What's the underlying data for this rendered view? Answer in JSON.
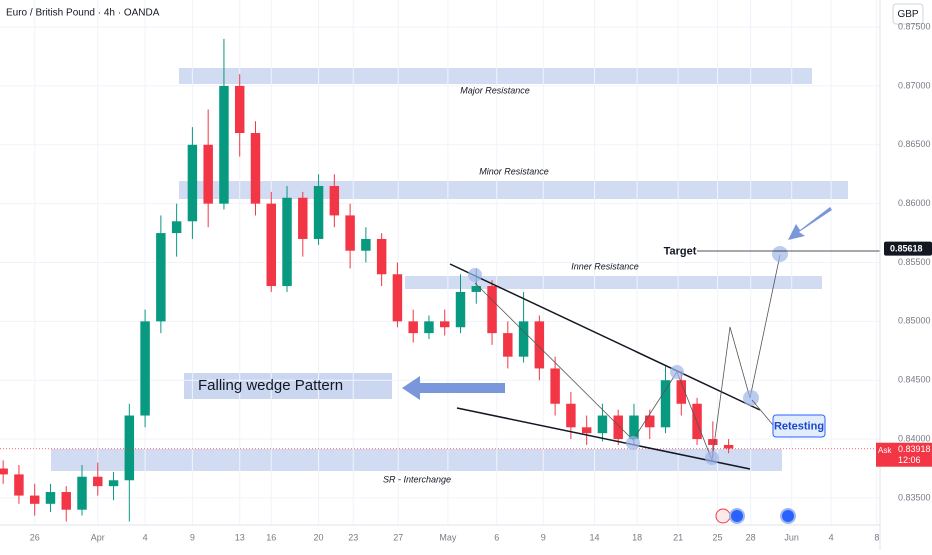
{
  "chart_data": {
    "type": "candlestick",
    "title": "Euro / British Pound · 4h · OANDA",
    "currency": "GBP",
    "up_color": "#089981",
    "down_color": "#f23645",
    "x": [
      -2,
      -1,
      0,
      1,
      2,
      3,
      4,
      5,
      6,
      7,
      8,
      9,
      10,
      11,
      12,
      13,
      14,
      15,
      16,
      17,
      18,
      19,
      20,
      21,
      22,
      23,
      24,
      25,
      26,
      27,
      28,
      29,
      30,
      31,
      32,
      33,
      34,
      35,
      36,
      37,
      38,
      39,
      40,
      41,
      42,
      43,
      44
    ],
    "open": [
      0.8375,
      0.837,
      0.8352,
      0.8345,
      0.8355,
      0.834,
      0.8368,
      0.836,
      0.8365,
      0.842,
      0.85,
      0.8575,
      0.8585,
      0.865,
      0.86,
      0.87,
      0.866,
      0.86,
      0.853,
      0.8605,
      0.857,
      0.8615,
      0.859,
      0.856,
      0.857,
      0.854,
      0.85,
      0.849,
      0.85,
      0.8495,
      0.8525,
      0.853,
      0.849,
      0.847,
      0.85,
      0.846,
      0.843,
      0.841,
      0.8405,
      0.842,
      0.84,
      0.842,
      0.841,
      0.845,
      0.843,
      0.84,
      0.8395
    ],
    "high": [
      0.8382,
      0.8378,
      0.8362,
      0.8362,
      0.836,
      0.8378,
      0.838,
      0.8372,
      0.843,
      0.851,
      0.859,
      0.86,
      0.8665,
      0.868,
      0.874,
      0.871,
      0.867,
      0.861,
      0.8615,
      0.861,
      0.8625,
      0.8625,
      0.86,
      0.858,
      0.8575,
      0.855,
      0.851,
      0.8505,
      0.851,
      0.854,
      0.8545,
      0.8535,
      0.85,
      0.8525,
      0.8505,
      0.847,
      0.844,
      0.842,
      0.843,
      0.8425,
      0.843,
      0.8425,
      0.8462,
      0.8458,
      0.8435,
      0.8415,
      0.84
    ],
    "low": [
      0.8362,
      0.8345,
      0.8335,
      0.8338,
      0.833,
      0.8335,
      0.8352,
      0.8348,
      0.833,
      0.841,
      0.849,
      0.8555,
      0.857,
      0.858,
      0.8595,
      0.864,
      0.859,
      0.8525,
      0.8525,
      0.8555,
      0.8565,
      0.858,
      0.8545,
      0.855,
      0.853,
      0.8495,
      0.8482,
      0.8485,
      0.8488,
      0.849,
      0.8515,
      0.848,
      0.846,
      0.8465,
      0.845,
      0.842,
      0.84,
      0.8395,
      0.8398,
      0.8395,
      0.8395,
      0.84,
      0.8405,
      0.842,
      0.8395,
      0.8385,
      0.8388
    ],
    "close": [
      0.837,
      0.8352,
      0.8345,
      0.8355,
      0.834,
      0.8368,
      0.836,
      0.8365,
      0.842,
      0.85,
      0.8575,
      0.8585,
      0.865,
      0.86,
      0.87,
      0.866,
      0.86,
      0.853,
      0.8605,
      0.857,
      0.8615,
      0.859,
      0.856,
      0.857,
      0.854,
      0.85,
      0.849,
      0.85,
      0.8495,
      0.8525,
      0.853,
      0.849,
      0.847,
      0.85,
      0.846,
      0.843,
      0.841,
      0.8405,
      0.842,
      0.84,
      0.842,
      0.841,
      0.845,
      0.843,
      0.84,
      0.8395,
      0.8392
    ],
    "xlim": [
      -2.2,
      53.6
    ],
    "xticks": [
      {
        "value": 0,
        "label": "26"
      },
      {
        "value": 4,
        "label": "Apr"
      },
      {
        "value": 7,
        "label": "4"
      },
      {
        "value": 10,
        "label": "9"
      },
      {
        "value": 13,
        "label": "13"
      },
      {
        "value": 15,
        "label": "16"
      },
      {
        "value": 18,
        "label": "20"
      },
      {
        "value": 20.2,
        "label": "23"
      },
      {
        "value": 23.05,
        "label": "27"
      },
      {
        "value": 26.2,
        "label": "May"
      },
      {
        "value": 29.3,
        "label": "6"
      },
      {
        "value": 32.25,
        "label": "9"
      },
      {
        "value": 35.5,
        "label": "14"
      },
      {
        "value": 38.2,
        "label": "18"
      },
      {
        "value": 40.8,
        "label": "21"
      },
      {
        "value": 43.3,
        "label": "25"
      },
      {
        "value": 45.4,
        "label": "28"
      },
      {
        "value": 48,
        "label": "Jun"
      },
      {
        "value": 50.5,
        "label": "4"
      },
      {
        "value": 53.4,
        "label": "8"
      }
    ],
    "ylim": [
      0.8327,
      0.8773
    ],
    "yticks": [
      {
        "value": 0.835,
        "label": "0.83500"
      },
      {
        "value": 0.84,
        "label": "0.84000"
      },
      {
        "value": 0.845,
        "label": "0.84500"
      },
      {
        "value": 0.85,
        "label": "0.85000"
      },
      {
        "value": 0.855,
        "label": "0.85500"
      },
      {
        "value": 0.86,
        "label": "0.86000"
      },
      {
        "value": 0.865,
        "label": "0.86500"
      },
      {
        "value": 0.87,
        "label": "0.87000"
      },
      {
        "value": 0.875,
        "label": "0.87500"
      }
    ],
    "ask": {
      "label": "Ask",
      "value": 0.83918,
      "time": "12:06"
    },
    "target": {
      "label": "Target",
      "value": 0.85618
    },
    "annotations": {
      "major": "Major Resistance",
      "minor": "Minor Resistance",
      "inner": "Inner Resistance",
      "pattern": "Falling wedge Pattern",
      "retest": "Retesting",
      "sr": "SR - Interchange"
    }
  }
}
